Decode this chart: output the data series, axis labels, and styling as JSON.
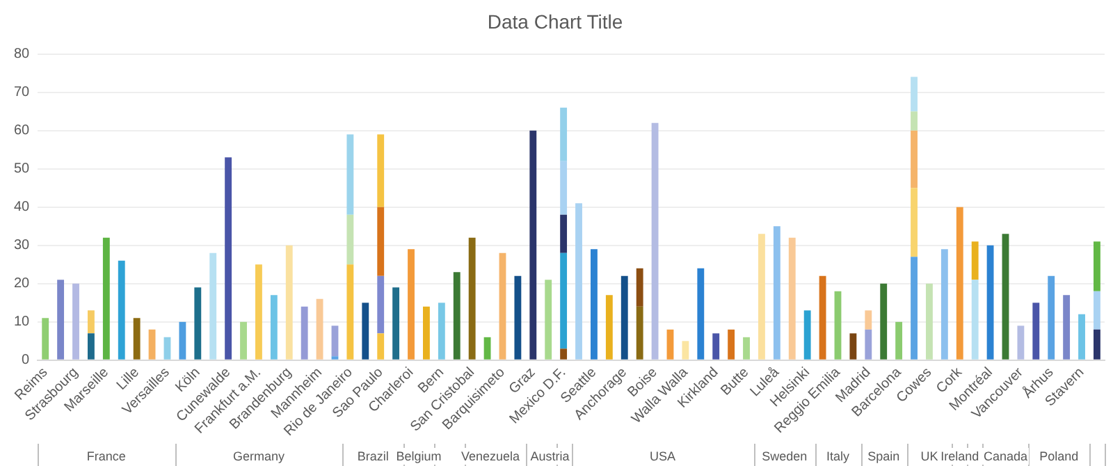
{
  "chart_data": {
    "type": "bar",
    "title": "Data Chart Title",
    "stacked": true,
    "grid": "y",
    "legend": false,
    "categories": [
      "Reims",
      null,
      "Strasbourg",
      null,
      "Marseille",
      null,
      "Lille",
      null,
      "Versailles",
      null,
      "Köln",
      null,
      "Cunewalde",
      null,
      "Frankfurt a.M.",
      null,
      "Brandenburg",
      null,
      "Mannheim",
      null,
      "Rio de Janeiro",
      null,
      "Sao Paulo",
      null,
      "Charleroi",
      null,
      "Bern",
      null,
      "San Cristobal",
      null,
      "Barquisimeto",
      null,
      "Graz",
      null,
      "Mexico D.F.",
      null,
      "Seattle",
      null,
      "Anchorage",
      null,
      "Boise",
      null,
      "Walla Walla",
      null,
      "Kirkland",
      null,
      "Butte",
      null,
      "Luleå",
      null,
      "Helsinki",
      null,
      "Reggio Emilia",
      null,
      "Madrid",
      null,
      "Barcelona",
      null,
      "Cowes",
      null,
      "Cork",
      null,
      "Montréal",
      null,
      "Vancouver",
      null,
      "Århus",
      null,
      "Stavern",
      null
    ],
    "ylim": [
      0,
      80
    ],
    "yticks": [
      0,
      10,
      20,
      30,
      40,
      50,
      60,
      70,
      80
    ],
    "series": [
      {
        "values": [
          11,
          21,
          20,
          7,
          32,
          26,
          11,
          8,
          6,
          10,
          19,
          28,
          53,
          10,
          25,
          17,
          30,
          14,
          16,
          1,
          25,
          15,
          7,
          19,
          29,
          14,
          15,
          23,
          32,
          6,
          28,
          22,
          60,
          21,
          3,
          41,
          29,
          17,
          22,
          14,
          62,
          8,
          5,
          24,
          7,
          8,
          6,
          33,
          35,
          32,
          13,
          22,
          18,
          7,
          8,
          20,
          10,
          27,
          20,
          29,
          40,
          21,
          30,
          33,
          9,
          15,
          22,
          17,
          12,
          8
        ],
        "colors": [
          "#8fce72",
          "#7a86c9",
          "#b3b9e3",
          "#1e6b8c",
          "#5db443",
          "#2ea3d6",
          "#8c6b12",
          "#f4b060",
          "#8ecfe9",
          "#4d9de0",
          "#1d6f8c",
          "#b6e0f2",
          "#4a55a8",
          "#a8d98d",
          "#f7cb55",
          "#6cc3e6",
          "#fae1a0",
          "#949ad6",
          "#f9c996",
          "#5ba4e5",
          "#f5c342",
          "#14508a",
          "#f5c342",
          "#1f6e8c",
          "#f39a3a",
          "#e9b11e",
          "#78c8e6",
          "#3c7a34",
          "#8a6b14",
          "#62b845",
          "#f5b46a",
          "#14508a",
          "#2b356b",
          "#a8d98d",
          "#8c4e12",
          "#a9d2f2",
          "#2b82d2",
          "#e9b11e",
          "#14508a",
          "#8a6b14",
          "#b4bce3",
          "#f39a3a",
          "#fbe5a2",
          "#2b82d2",
          "#4a55a8",
          "#d8731b",
          "#a8d98d",
          "#fbe09e",
          "#8cc0ee",
          "#f9c996",
          "#2ba2d2",
          "#d8731b",
          "#8bcb6f",
          "#7a4512",
          "#9aa2d9",
          "#3c7a34",
          "#8bcb6f",
          "#5aa3e3",
          "#c5e3b3",
          "#8cc0ee",
          "#f39a3a",
          "#b6e0f2",
          "#2b82d2",
          "#3c7a34",
          "#b4bce3",
          "#4a55a8",
          "#5aa3e3",
          "#7a86c9",
          "#6cc3e6",
          "#2b356b"
        ]
      },
      {
        "values": [
          null,
          null,
          null,
          6,
          null,
          null,
          null,
          null,
          null,
          null,
          null,
          null,
          null,
          null,
          null,
          null,
          null,
          null,
          null,
          8,
          13,
          null,
          15,
          null,
          null,
          null,
          null,
          null,
          null,
          null,
          null,
          null,
          null,
          null,
          25,
          null,
          null,
          null,
          null,
          10,
          null,
          null,
          null,
          null,
          null,
          null,
          null,
          null,
          null,
          null,
          null,
          null,
          null,
          null,
          5,
          null,
          null,
          18,
          null,
          null,
          null,
          10,
          null,
          null,
          null,
          null,
          null,
          null,
          null,
          10
        ],
        "colors": [
          null,
          null,
          null,
          "#f6cb62",
          null,
          null,
          null,
          null,
          null,
          null,
          null,
          null,
          null,
          null,
          null,
          null,
          null,
          null,
          null,
          "#9aa2d9",
          "#c5e3b3",
          null,
          "#7e88cf",
          null,
          null,
          null,
          null,
          null,
          null,
          null,
          null,
          null,
          null,
          null,
          "#2ba2d2",
          null,
          null,
          null,
          null,
          "#8c4e12",
          null,
          null,
          null,
          null,
          null,
          null,
          null,
          null,
          null,
          null,
          null,
          null,
          null,
          null,
          "#f9c996",
          null,
          null,
          "#f8d46d",
          null,
          null,
          null,
          "#e9b11e",
          null,
          null,
          null,
          null,
          null,
          null,
          null,
          "#a9d2f2"
        ]
      },
      {
        "values": [
          null,
          null,
          null,
          null,
          null,
          null,
          null,
          null,
          null,
          null,
          null,
          null,
          null,
          null,
          null,
          null,
          null,
          null,
          null,
          null,
          21,
          null,
          18,
          null,
          null,
          null,
          null,
          null,
          null,
          null,
          null,
          null,
          null,
          null,
          10,
          null,
          null,
          null,
          null,
          null,
          null,
          null,
          null,
          null,
          null,
          null,
          null,
          null,
          null,
          null,
          null,
          null,
          null,
          null,
          null,
          null,
          null,
          15,
          null,
          null,
          null,
          null,
          null,
          null,
          null,
          null,
          null,
          null,
          null,
          13
        ],
        "colors": [
          null,
          null,
          null,
          null,
          null,
          null,
          null,
          null,
          null,
          null,
          null,
          null,
          null,
          null,
          null,
          null,
          null,
          null,
          null,
          null,
          "#9bd4ec",
          null,
          "#d8731b",
          null,
          null,
          null,
          null,
          null,
          null,
          null,
          null,
          null,
          null,
          null,
          "#2b356b",
          null,
          null,
          null,
          null,
          null,
          null,
          null,
          null,
          null,
          null,
          null,
          null,
          null,
          null,
          null,
          null,
          null,
          null,
          null,
          null,
          null,
          null,
          "#f5b46a",
          null,
          null,
          null,
          null,
          null,
          null,
          null,
          null,
          null,
          null,
          null,
          "#62b845"
        ]
      },
      {
        "values": [
          null,
          null,
          null,
          null,
          null,
          null,
          null,
          null,
          null,
          null,
          null,
          null,
          null,
          null,
          null,
          null,
          null,
          null,
          null,
          null,
          null,
          null,
          19,
          null,
          null,
          null,
          null,
          null,
          null,
          null,
          null,
          null,
          null,
          null,
          14,
          null,
          null,
          null,
          null,
          null,
          null,
          null,
          null,
          null,
          null,
          null,
          null,
          null,
          null,
          null,
          null,
          null,
          null,
          null,
          null,
          null,
          null,
          5,
          null,
          null,
          null,
          null,
          null,
          null,
          null,
          null,
          null,
          null,
          null,
          null
        ],
        "colors": [
          null,
          null,
          null,
          null,
          null,
          null,
          null,
          null,
          null,
          null,
          null,
          null,
          null,
          null,
          null,
          null,
          null,
          null,
          null,
          null,
          null,
          null,
          "#f5c342",
          null,
          null,
          null,
          null,
          null,
          null,
          null,
          null,
          null,
          null,
          null,
          "#a9d2f2",
          null,
          null,
          null,
          null,
          null,
          null,
          null,
          null,
          null,
          null,
          null,
          null,
          null,
          null,
          null,
          null,
          null,
          null,
          null,
          null,
          null,
          null,
          "#c5e3b3",
          null,
          null,
          null,
          null,
          null,
          null,
          null,
          null,
          null,
          null,
          null,
          null
        ]
      },
      {
        "values": [
          null,
          null,
          null,
          null,
          null,
          null,
          null,
          null,
          null,
          null,
          null,
          null,
          null,
          null,
          null,
          null,
          null,
          null,
          null,
          null,
          null,
          null,
          null,
          null,
          null,
          null,
          null,
          null,
          null,
          null,
          null,
          null,
          null,
          null,
          14,
          null,
          null,
          null,
          null,
          null,
          null,
          null,
          null,
          null,
          null,
          null,
          null,
          null,
          null,
          null,
          null,
          null,
          null,
          null,
          null,
          null,
          null,
          9,
          null,
          null,
          null,
          null,
          null,
          null,
          null,
          null,
          null,
          null,
          null,
          null
        ],
        "colors": [
          null,
          null,
          null,
          null,
          null,
          null,
          null,
          null,
          null,
          null,
          null,
          null,
          null,
          null,
          null,
          null,
          null,
          null,
          null,
          null,
          null,
          null,
          null,
          null,
          null,
          null,
          null,
          null,
          null,
          null,
          null,
          null,
          null,
          null,
          "#93d0ea",
          null,
          null,
          null,
          null,
          null,
          null,
          null,
          null,
          null,
          null,
          null,
          null,
          null,
          null,
          null,
          null,
          null,
          null,
          null,
          null,
          null,
          null,
          "#b6e0f2",
          null,
          null,
          null,
          null,
          null,
          null,
          null,
          null,
          null,
          null,
          null,
          null
        ]
      }
    ],
    "annotations": [
      "France",
      "Germany",
      "Brazil",
      "Belgium",
      "Venezuela",
      "Austria",
      "USA",
      "Sweden",
      "Italy",
      "Spain",
      "UK",
      "Ireland",
      "Canada",
      "Poland"
    ]
  }
}
